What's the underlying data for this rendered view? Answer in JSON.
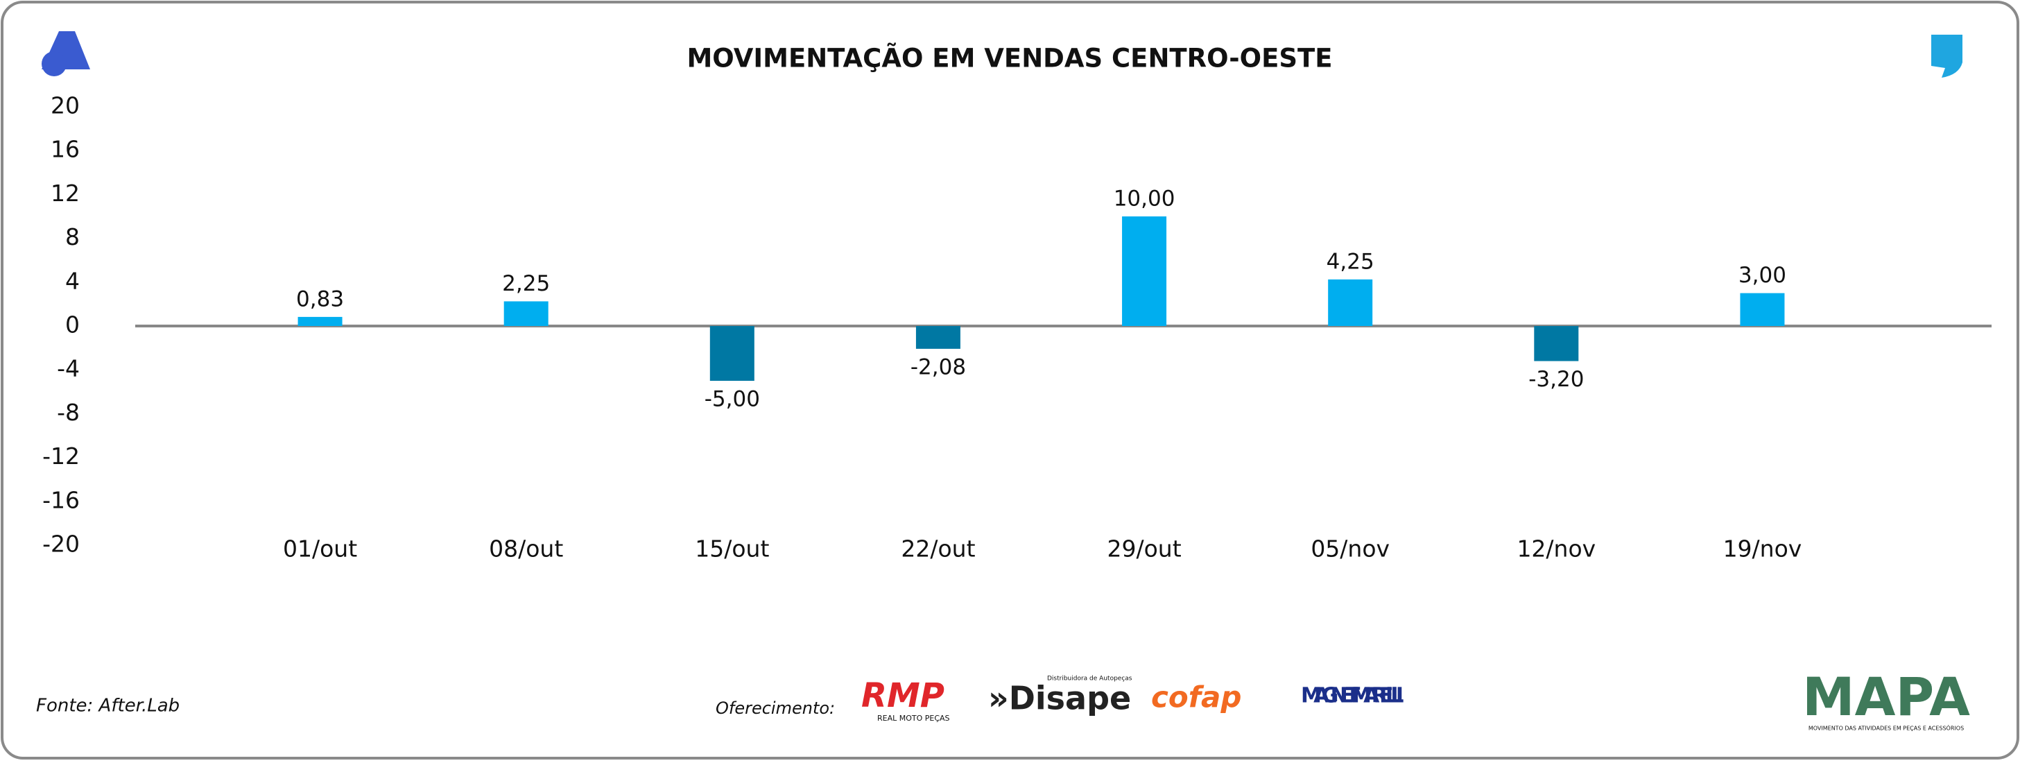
{
  "chart_data": {
    "type": "bar",
    "title": "MOVIMENTAÇÃO EM VENDAS CENTRO-OESTE",
    "categories": [
      "01/out",
      "08/out",
      "15/out",
      "22/out",
      "29/out",
      "05/nov",
      "12/nov",
      "19/nov"
    ],
    "values": [
      0.83,
      2.25,
      -5,
      -2.08,
      10,
      4.25,
      -3.2,
      3
    ],
    "value_labels": [
      "0,83",
      "2,25",
      "-5,00",
      "-2,08",
      "10,00",
      "4,25",
      "-3,20",
      "3,00"
    ],
    "color_positive": "#00aeef",
    "color_negative": "#0078a3",
    "ylim": [
      -20,
      20
    ],
    "yticks": [
      20,
      16,
      12,
      8,
      4,
      0,
      -4,
      -8,
      -12,
      -16,
      -20
    ],
    "grid": false
  },
  "footer": {
    "source": "Fonte: After.Lab",
    "sponsor_label": "Oferecimento:",
    "sponsors": [
      {
        "name": "RMP",
        "tagline": "REAL MOTO PEÇAS"
      },
      {
        "name": "»Disape",
        "tagline": "Distribuidora de Autopeças"
      },
      {
        "name": "cofap"
      },
      {
        "name": "MAGNETI MARELLI"
      }
    ],
    "brand": "MAPA",
    "brand_tagline": "MOVIMENTO DAS ATIVIDADES EM PEÇAS E ACESSÓRIOS"
  }
}
